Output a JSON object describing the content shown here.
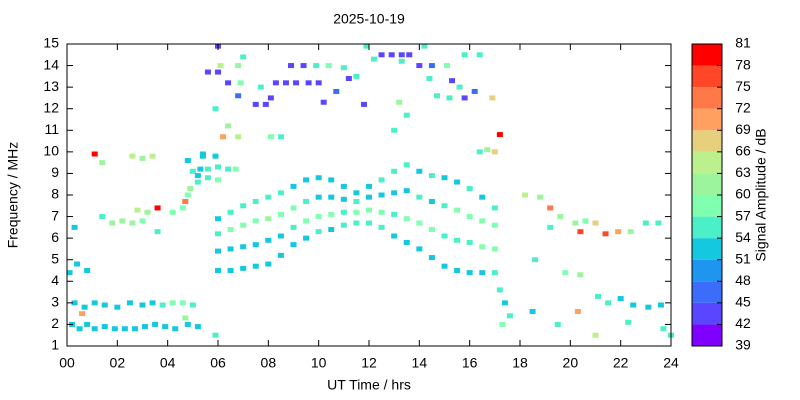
{
  "chart_data": {
    "type": "heatmap",
    "title": "2025-10-19",
    "x_label": "UT Time / hrs",
    "y_label": "Frequency / MHz",
    "xlim": [
      0,
      24
    ],
    "ylim": [
      1,
      15
    ],
    "xticks": [
      {
        "value": 0,
        "label": "00"
      },
      {
        "value": 2,
        "label": "02"
      },
      {
        "value": 4,
        "label": "04"
      },
      {
        "value": 6,
        "label": "06"
      },
      {
        "value": 8,
        "label": "08"
      },
      {
        "value": 10,
        "label": "10"
      },
      {
        "value": 12,
        "label": "12"
      },
      {
        "value": 14,
        "label": "14"
      },
      {
        "value": 16,
        "label": "16"
      },
      {
        "value": 18,
        "label": "18"
      },
      {
        "value": 20,
        "label": "20"
      },
      {
        "value": 22,
        "label": "22"
      },
      {
        "value": 24,
        "label": "24"
      }
    ],
    "yticks": [
      1,
      2,
      3,
      4,
      5,
      6,
      7,
      8,
      9,
      10,
      11,
      12,
      13,
      14,
      15
    ],
    "colorbar": {
      "label": "Signal Amplitude / dB",
      "clim": [
        39,
        81
      ],
      "ticks": [
        39,
        42,
        45,
        48,
        51,
        54,
        57,
        60,
        63,
        66,
        69,
        72,
        75,
        78,
        81
      ],
      "colors": [
        "#7f00ff",
        "#5a46ff",
        "#3c6cfa",
        "#1e96f0",
        "#14c8e0",
        "#4cf0c8",
        "#80ffb0",
        "#9cf59c",
        "#bcf08c",
        "#e6d07e",
        "#ffa060",
        "#ff7848",
        "#ff4626",
        "#ff0000"
      ]
    },
    "x": [
      0.2,
      0.5,
      0.8,
      1.1,
      1.5,
      1.9,
      2.3,
      2.7,
      3.1,
      3.5,
      3.9,
      4.3,
      4.8,
      5.2,
      0.3,
      0.7,
      1.1,
      1.5,
      2.0,
      2.5,
      3.0,
      3.4,
      3.8,
      4.2,
      4.6,
      5.0,
      0.1,
      0.4,
      0.8,
      0.6,
      4.7,
      1.1,
      1.4,
      2.6,
      3.0,
      3.4,
      3.6,
      3.2,
      2.8,
      1.8,
      2.2,
      2.6,
      3.0,
      1.4,
      3.6,
      4.2,
      4.6,
      4.7,
      4.8,
      0.3,
      4.9,
      5.2,
      5.0,
      5.4,
      4.8,
      6,
      6,
      6,
      6,
      6.5,
      6.5,
      6.5,
      6.5,
      7,
      7,
      7,
      7,
      7.5,
      7.5,
      7.5,
      7.5,
      8,
      8,
      8,
      8,
      8.5,
      8.5,
      8.5,
      8.5,
      9,
      9,
      9,
      9,
      9.5,
      9.5,
      9.5,
      9.5,
      10,
      10,
      10,
      10,
      10.5,
      10.5,
      10.5,
      10.5,
      11,
      11,
      11,
      11,
      11.5,
      11.5,
      11.5,
      11.5,
      12,
      12,
      12,
      12,
      12.5,
      12.5,
      12.5,
      12.5,
      13,
      13,
      13,
      13,
      13.5,
      13.5,
      13.5,
      13.5,
      14,
      14,
      14,
      14,
      14.5,
      14.5,
      14.5,
      14.5,
      15,
      15,
      15,
      15,
      15.5,
      15.5,
      15.5,
      15.5,
      16,
      16,
      16,
      16,
      16.5,
      16.5,
      16.5,
      16.5,
      17,
      17,
      17,
      17,
      17.2,
      17.4,
      17.6,
      17.3,
      18.2,
      18.8,
      19.2,
      19.6,
      20.2,
      20.6,
      21.0,
      20.4,
      21.4,
      21.9,
      22.4,
      23.0,
      23.5,
      19.2,
      18.6,
      19.8,
      20.4,
      21.1,
      21.5,
      22.0,
      22.5,
      23.1,
      23.6,
      22.3,
      23.7,
      24.0,
      20.3,
      21.0,
      19.5,
      18.5,
      16.7,
      17.0,
      17.2,
      16.4,
      16.9,
      5.6,
      6.0,
      6.4,
      6.1,
      6.8,
      6.9,
      7.0,
      6.8,
      7.5,
      7.9,
      8.1,
      7.7,
      8.3,
      8.7,
      9.1,
      9.6,
      10.0,
      8.9,
      9.4,
      9.9,
      10.4,
      10.2,
      10.7,
      11.0,
      11.2,
      11.5,
      11.8,
      12.2,
      12.5,
      12.9,
      13.3,
      13.6,
      13.3,
      14.0,
      14.5,
      14.4,
      15.1,
      15.3,
      15.6,
      15.8,
      16.2,
      15.8,
      16.4,
      14.7,
      15.2,
      5.9,
      6.2,
      6.4,
      6.8,
      8.1,
      8.5,
      13.0,
      13.2,
      13.5,
      6.0,
      11.9,
      14.2,
      5.9,
      5.4,
      6.0,
      5.3,
      5.6,
      6.4,
      6.7,
      5.2,
      5.6,
      6.0,
      5.9
    ],
    "y": [
      2.0,
      1.8,
      2.0,
      1.8,
      1.9,
      1.8,
      1.8,
      1.8,
      1.9,
      2.0,
      1.9,
      1.8,
      2.0,
      1.9,
      3.0,
      2.8,
      3.0,
      2.9,
      2.8,
      3.0,
      2.9,
      3.0,
      2.9,
      3.0,
      3.0,
      2.9,
      4.4,
      4.8,
      4.5,
      2.5,
      2.3,
      9.9,
      9.5,
      9.8,
      9.7,
      9.8,
      7.4,
      7.2,
      7.3,
      6.7,
      6.8,
      6.7,
      6.8,
      7.0,
      6.3,
      7.2,
      7.4,
      7.7,
      8.0,
      6.5,
      8.3,
      8.6,
      9.1,
      9.8,
      9.6,
      4.5,
      5.4,
      6.2,
      6.9,
      4.5,
      5.5,
      6.4,
      7.2,
      4.6,
      5.6,
      6.6,
      7.5,
      4.7,
      5.7,
      6.8,
      7.7,
      4.8,
      5.9,
      6.9,
      7.9,
      5.2,
      6.1,
      7.1,
      8.1,
      5.7,
      6.5,
      7.4,
      8.4,
      6.0,
      6.8,
      7.7,
      8.7,
      6.3,
      7.0,
      7.9,
      8.8,
      6.4,
      7.1,
      7.9,
      8.7,
      6.6,
      7.2,
      7.8,
      8.4,
      6.7,
      7.2,
      7.7,
      8.1,
      6.7,
      7.3,
      7.9,
      8.4,
      6.5,
      7.2,
      8.0,
      8.7,
      6.1,
      7.1,
      8.1,
      9.1,
      5.8,
      6.9,
      8.2,
      9.4,
      5.5,
      6.7,
      7.9,
      9.1,
      5.1,
      6.4,
      7.7,
      8.9,
      4.7,
      6.1,
      7.5,
      8.8,
      4.5,
      5.9,
      7.3,
      8.6,
      4.4,
      5.8,
      7.0,
      8.3,
      4.4,
      5.6,
      6.8,
      7.9,
      4.4,
      5.5,
      6.6,
      7.4,
      3.6,
      3.0,
      2.4,
      2.0,
      8.0,
      7.9,
      7.4,
      7.0,
      6.7,
      6.8,
      6.7,
      6.3,
      6.2,
      6.3,
      6.3,
      6.7,
      6.7,
      6.5,
      5.0,
      4.4,
      4.3,
      3.3,
      3.0,
      3.2,
      2.9,
      2.8,
      2.9,
      2.1,
      1.8,
      1.5,
      2.6,
      1.5,
      2.0,
      2.6,
      10.1,
      10.0,
      10.8,
      10.0,
      12.5,
      13.7,
      13.7,
      13.2,
      14.0,
      14.0,
      13.2,
      14.4,
      12.6,
      12.2,
      12.2,
      12.5,
      13.0,
      13.2,
      13.2,
      13.2,
      13.2,
      13.2,
      14.0,
      14.0,
      14.0,
      14.0,
      12.3,
      12.8,
      13.9,
      13.4,
      13.5,
      12.2,
      14.3,
      14.5,
      14.5,
      14.5,
      14.5,
      14.2,
      14.0,
      14.0,
      13.4,
      14.0,
      13.3,
      13.0,
      12.5,
      12.8,
      14.5,
      14.5,
      12.6,
      12.5,
      12.0,
      10.7,
      11.2,
      10.7,
      10.7,
      10.7,
      11.0,
      12.3,
      11.7,
      14.9,
      14.9,
      14.9,
      9.8,
      9.9,
      9.3,
      9.2,
      9.2,
      9.2,
      9.2,
      8.9,
      8.8,
      8.7,
      1.5
    ],
    "values": [
      52,
      51,
      53,
      52,
      51,
      52,
      53,
      52,
      51,
      52,
      53,
      52,
      51,
      53,
      52,
      53,
      51,
      52,
      53,
      52,
      51,
      53,
      56,
      58,
      57,
      55,
      53,
      52,
      53,
      70,
      60,
      78,
      60,
      63,
      60,
      63,
      78,
      60,
      63,
      60,
      62,
      60,
      58,
      55,
      54,
      58,
      57,
      72,
      58,
      53,
      60,
      55,
      56,
      53,
      52,
      52,
      53,
      55,
      53,
      51,
      52,
      57,
      55,
      52,
      51,
      58,
      55,
      51,
      52,
      57,
      54,
      52,
      53,
      60,
      55,
      51,
      53,
      58,
      54,
      52,
      55,
      57,
      53,
      53,
      57,
      54,
      52,
      54,
      58,
      53,
      52,
      53,
      57,
      52,
      53,
      54,
      56,
      53,
      52,
      55,
      57,
      54,
      53,
      54,
      58,
      53,
      52,
      55,
      57,
      52,
      54,
      53,
      56,
      52,
      54,
      52,
      57,
      53,
      55,
      53,
      58,
      54,
      52,
      52,
      57,
      53,
      54,
      51,
      56,
      55,
      53,
      52,
      55,
      57,
      53,
      53,
      56,
      58,
      54,
      52,
      58,
      57,
      53,
      54,
      57,
      58,
      55,
      54,
      53,
      54,
      58,
      63,
      60,
      72,
      60,
      62,
      58,
      66,
      76,
      76,
      70,
      60,
      55,
      54,
      56,
      56,
      58,
      60,
      56,
      54,
      52,
      51,
      53,
      52,
      54,
      55,
      55,
      70,
      63,
      56,
      53,
      60,
      66,
      78,
      56,
      66,
      42,
      42,
      42,
      63,
      60,
      58,
      54,
      45,
      44,
      42,
      42,
      54,
      42,
      42,
      42,
      42,
      42,
      42,
      42,
      54,
      58,
      44,
      45,
      54,
      42,
      56,
      42,
      54,
      42,
      42,
      42,
      44,
      54,
      42,
      45,
      54,
      58,
      42,
      56,
      42,
      45,
      54,
      54,
      54,
      56,
      54,
      70,
      60,
      63,
      57,
      54,
      55,
      60,
      54,
      42,
      54,
      54,
      52,
      52,
      54,
      53,
      54,
      55,
      58,
      52,
      54,
      57,
      55
    ]
  }
}
